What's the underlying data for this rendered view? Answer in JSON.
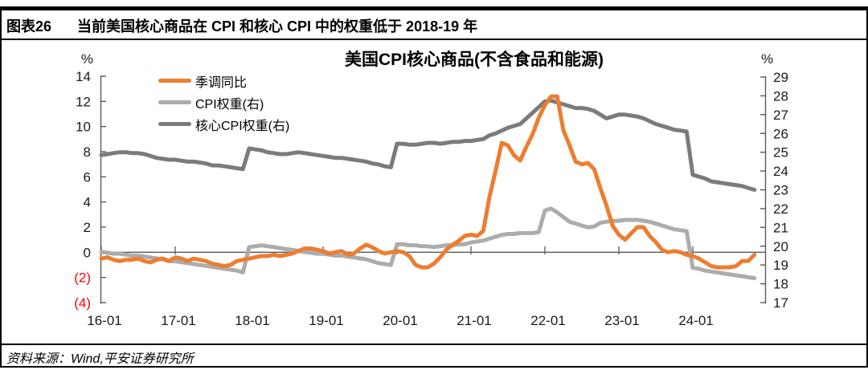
{
  "header": {
    "figure_label": "图表26",
    "figure_title": "当前美国核心商品在 CPI 和核心 CPI 中的权重低于 2018-19 年"
  },
  "footer": {
    "source": "资料来源：Wind,平安证券研究所"
  },
  "colors": {
    "series_orange": "#ED7D31",
    "series_light_gray": "#ACACAC",
    "series_dark_gray": "#7B7B7B",
    "axis": "#595959",
    "tick_label": "#1a1a1a",
    "negative_tick_label": "#ff0000",
    "frame": "#000000"
  },
  "chart_data": {
    "type": "line",
    "title": "美国CPI核心商品(不含食品和能源)",
    "grid": false,
    "legend_position": "top-left",
    "start_month": "2016-01",
    "n_months": 107,
    "left_axis": {
      "unit": "%",
      "ylim": [
        -4,
        14
      ],
      "tick_labels": [
        "14",
        "12",
        "10",
        "8",
        "6",
        "4",
        "2",
        "0",
        "(2)",
        "(4)"
      ],
      "tick_values": [
        14,
        12,
        10,
        8,
        6,
        4,
        2,
        0,
        -2,
        -4
      ]
    },
    "right_axis": {
      "unit": "%",
      "ylim": [
        17,
        29
      ],
      "tick_labels": [
        "29",
        "28",
        "27",
        "26",
        "25",
        "24",
        "23",
        "22",
        "21",
        "20",
        "19",
        "18",
        "17"
      ],
      "tick_values": [
        29,
        28,
        27,
        26,
        25,
        24,
        23,
        22,
        21,
        20,
        19,
        18,
        17
      ]
    },
    "x_axis": {
      "labels": [
        "16-01",
        "17-01",
        "18-01",
        "19-01",
        "20-01",
        "21-01",
        "22-01",
        "23-01",
        "24-01"
      ],
      "label_month_index": [
        0,
        12,
        24,
        36,
        48,
        60,
        72,
        84,
        96
      ]
    },
    "series": [
      {
        "name": "季调同比",
        "axis": "left",
        "color": "#ED7D31",
        "values": [
          -0.5,
          -0.4,
          -0.6,
          -0.7,
          -0.6,
          -0.6,
          -0.5,
          -0.7,
          -0.8,
          -0.6,
          -0.5,
          -0.7,
          -0.4,
          -0.5,
          -0.7,
          -0.5,
          -0.6,
          -0.7,
          -0.9,
          -1.0,
          -1.1,
          -1.0,
          -0.7,
          -0.6,
          -0.5,
          -0.4,
          -0.3,
          -0.3,
          -0.2,
          -0.3,
          -0.2,
          -0.1,
          0.1,
          0.3,
          0.3,
          0.2,
          0.1,
          -0.1,
          0.0,
          0.1,
          -0.2,
          -0.1,
          0.3,
          0.6,
          0.4,
          0.1,
          -0.1,
          0.0,
          0.1,
          0.0,
          -0.3,
          -1.0,
          -1.2,
          -1.2,
          -0.9,
          -0.4,
          0.2,
          0.6,
          0.9,
          1.3,
          1.4,
          1.3,
          1.7,
          4.4,
          6.5,
          8.7,
          8.5,
          7.7,
          7.3,
          8.4,
          9.4,
          10.7,
          11.7,
          12.4,
          12.4,
          9.7,
          8.5,
          7.2,
          7.0,
          7.1,
          6.6,
          5.1,
          3.7,
          2.1,
          1.4,
          1.0,
          1.5,
          2.0,
          2.0,
          1.3,
          0.8,
          0.2,
          0.0,
          0.1,
          0.0,
          -0.2,
          -0.3,
          -0.5,
          -0.8,
          -1.1,
          -1.2,
          -1.2,
          -1.2,
          -1.1,
          -0.7,
          -0.7,
          -0.2
        ]
      },
      {
        "name": "CPI权重(右)",
        "axis": "right",
        "color": "#ACACAC",
        "values": [
          19.7,
          19.65,
          19.6,
          19.6,
          19.55,
          19.5,
          19.5,
          19.45,
          19.4,
          19.35,
          19.3,
          19.2,
          19.2,
          19.15,
          19.1,
          19.05,
          19.0,
          18.95,
          18.9,
          18.85,
          18.8,
          18.75,
          18.7,
          18.6,
          19.95,
          20.0,
          20.05,
          20.0,
          19.95,
          19.9,
          19.85,
          19.8,
          19.75,
          19.7,
          19.65,
          19.6,
          19.6,
          19.55,
          19.5,
          19.5,
          19.45,
          19.4,
          19.35,
          19.3,
          19.2,
          19.1,
          19.05,
          19.0,
          20.1,
          20.1,
          20.05,
          20.05,
          20.0,
          20.0,
          19.95,
          20.0,
          20.05,
          20.05,
          20.1,
          20.1,
          20.2,
          20.25,
          20.3,
          20.4,
          20.5,
          20.6,
          20.65,
          20.65,
          20.7,
          20.7,
          20.7,
          20.75,
          21.9,
          22.0,
          21.8,
          21.55,
          21.3,
          21.2,
          21.1,
          21.0,
          21.05,
          21.25,
          21.3,
          21.35,
          21.35,
          21.4,
          21.4,
          21.4,
          21.35,
          21.3,
          21.2,
          21.1,
          21.0,
          20.9,
          20.85,
          20.8,
          18.85,
          18.8,
          18.7,
          18.65,
          18.6,
          18.55,
          18.5,
          18.45,
          18.4,
          18.35,
          18.3
        ]
      },
      {
        "name": "核心CPI权重(右)",
        "axis": "right",
        "color": "#7B7B7B",
        "values": [
          24.85,
          24.9,
          24.95,
          25.0,
          25.0,
          24.95,
          24.95,
          24.9,
          24.8,
          24.7,
          24.65,
          24.6,
          24.6,
          24.55,
          24.5,
          24.5,
          24.45,
          24.4,
          24.3,
          24.3,
          24.25,
          24.2,
          24.15,
          24.1,
          25.2,
          25.15,
          25.1,
          25.0,
          24.95,
          24.9,
          24.9,
          24.95,
          25.0,
          24.95,
          24.9,
          24.85,
          24.8,
          24.75,
          24.7,
          24.7,
          24.65,
          24.6,
          24.55,
          24.5,
          24.4,
          24.35,
          24.25,
          24.2,
          25.45,
          25.45,
          25.4,
          25.4,
          25.45,
          25.5,
          25.5,
          25.45,
          25.5,
          25.55,
          25.55,
          25.6,
          25.6,
          25.65,
          25.7,
          25.9,
          26.0,
          26.15,
          26.3,
          26.4,
          26.5,
          26.8,
          27.1,
          27.4,
          27.7,
          27.75,
          27.65,
          27.55,
          27.45,
          27.35,
          27.35,
          27.3,
          27.2,
          27.0,
          26.8,
          26.9,
          27.0,
          27.0,
          26.95,
          26.9,
          26.8,
          26.65,
          26.5,
          26.4,
          26.3,
          26.2,
          26.15,
          26.1,
          23.8,
          23.7,
          23.6,
          23.45,
          23.4,
          23.35,
          23.3,
          23.25,
          23.2,
          23.1,
          23.0
        ]
      }
    ]
  }
}
